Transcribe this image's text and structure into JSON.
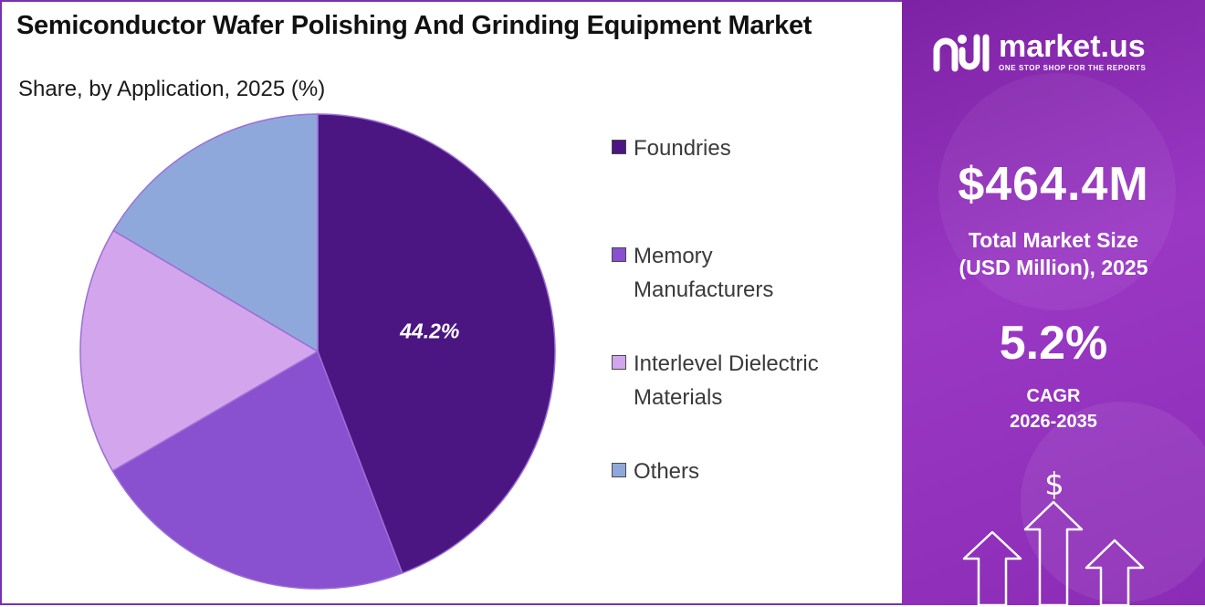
{
  "chart_data": {
    "type": "pie",
    "title": "Semiconductor Wafer Polishing And Grinding Equipment Market",
    "subtitle": "Share, by Application, 2025 (%)",
    "categories": [
      "Foundries",
      "Memory Manufacturers",
      "Interlevel Dielectric Materials",
      "Others"
    ],
    "values": [
      44.2,
      22.4,
      16.9,
      16.5
    ],
    "colors": [
      "#4b1681",
      "#8950cf",
      "#d3a5ec",
      "#8ea8dc"
    ],
    "data_labels": [
      "44.2%",
      "",
      "",
      ""
    ],
    "legend_position": "right"
  },
  "side_panel": {
    "brand_name": "market.us",
    "brand_tagline": "ONE STOP SHOP FOR THE REPORTS",
    "market_value": "$464.4M",
    "market_label_line1": "Total Market Size",
    "market_label_line2": "(USD Million), 2025",
    "cagr_value": "5.2%",
    "cagr_label_line1": "CAGR",
    "cagr_label_line2": "2026-2035",
    "dollar_symbol": "$",
    "icons": [
      "market-us-logo-icon",
      "dollar-icon",
      "up-arrow-icon"
    ]
  }
}
